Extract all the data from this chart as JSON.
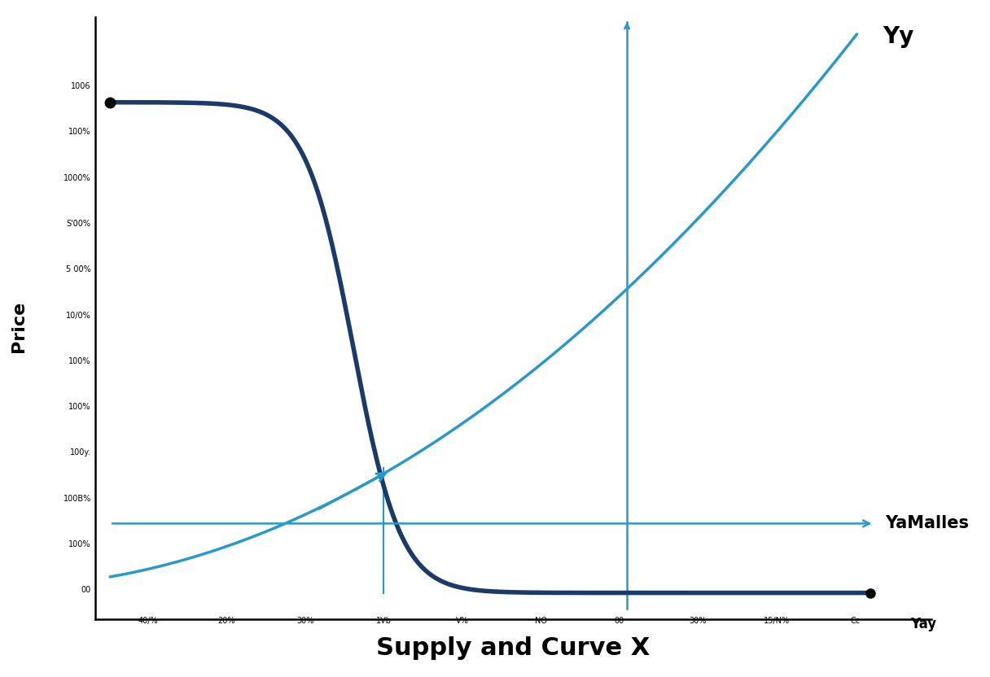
{
  "title": "",
  "xlabel": "Supply and Curve X",
  "ylabel": "Price",
  "supply_label": "Yy",
  "values_label": "YaMalles",
  "x_end_label": "Yay",
  "demand_color": "#1a3a6b",
  "supply_color": "#2999cc",
  "ref_line_color": "#2999cc",
  "background_color": "#ffffff",
  "xlim": [
    0,
    10
  ],
  "ylim": [
    0,
    10
  ],
  "eq_x": 6.8,
  "eq_y": 1.3,
  "demand_lw": 4.0,
  "supply_lw": 2.5,
  "ref_lw": 1.8,
  "ytick_labels": [
    "00",
    "100%",
    "100B%",
    "100y.",
    "100%",
    "100%",
    "10/0%",
    "5 00%",
    "S'00%",
    "1000%",
    "100%",
    "1006"
  ],
  "xtick_labels": [
    "40/%",
    "20%",
    "30%",
    "1Vb",
    "V%",
    "NO",
    "00",
    "30%",
    "15/N%",
    "Cc"
  ]
}
